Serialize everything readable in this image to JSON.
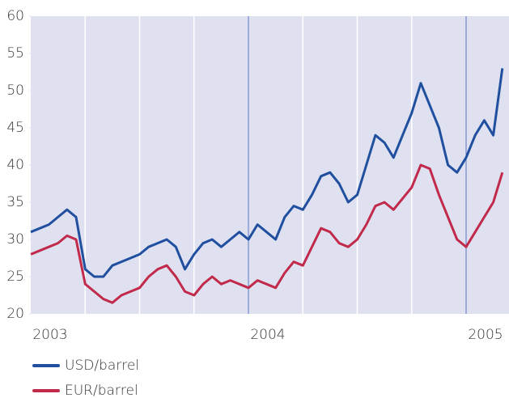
{
  "chart_data": {
    "type": "line",
    "categories": [
      "2003",
      null,
      null,
      null,
      null,
      null,
      null,
      null,
      null,
      null,
      null,
      null,
      null,
      null,
      null,
      null,
      null,
      null,
      null,
      null,
      null,
      null,
      null,
      null,
      "2004",
      null,
      null,
      null,
      null,
      null,
      null,
      null,
      null,
      null,
      null,
      null,
      null,
      null,
      null,
      null,
      null,
      null,
      null,
      null,
      null,
      null,
      null,
      null,
      "2005",
      null,
      null,
      null,
      null
    ],
    "series": [
      {
        "name": "USD/barrel",
        "color": "#1f4f9e",
        "values": [
          31,
          31.5,
          32,
          33,
          34,
          33,
          26,
          25,
          25,
          26.5,
          27,
          27.5,
          28,
          29,
          29.5,
          30,
          29,
          26,
          28,
          29.5,
          30,
          29,
          30,
          31,
          30,
          32,
          31,
          30,
          33,
          34.5,
          34,
          36,
          38.5,
          39,
          37.5,
          35,
          36,
          40,
          44,
          43,
          41,
          44,
          47,
          51,
          48,
          45,
          40,
          39,
          41,
          44,
          46,
          44,
          53
        ]
      },
      {
        "name": "EUR/barrel",
        "color": "#c12a4b",
        "values": [
          28,
          28.5,
          29,
          29.5,
          30.5,
          30,
          24,
          23,
          22,
          21.5,
          22.5,
          23,
          23.5,
          25,
          26,
          26.5,
          25,
          23,
          22.5,
          24,
          25,
          24,
          24.5,
          24,
          23.5,
          24.5,
          24,
          23.5,
          25.5,
          27,
          26.5,
          29,
          31.5,
          31,
          29.5,
          29,
          30,
          32,
          34.5,
          35,
          34,
          35.5,
          37,
          40,
          39.5,
          36,
          33,
          30,
          29,
          31,
          33,
          35,
          39
        ]
      }
    ],
    "ylim": [
      20,
      60
    ],
    "yticks": [
      20,
      25,
      30,
      35,
      40,
      45,
      50,
      55,
      60
    ],
    "legend": "bottom"
  }
}
